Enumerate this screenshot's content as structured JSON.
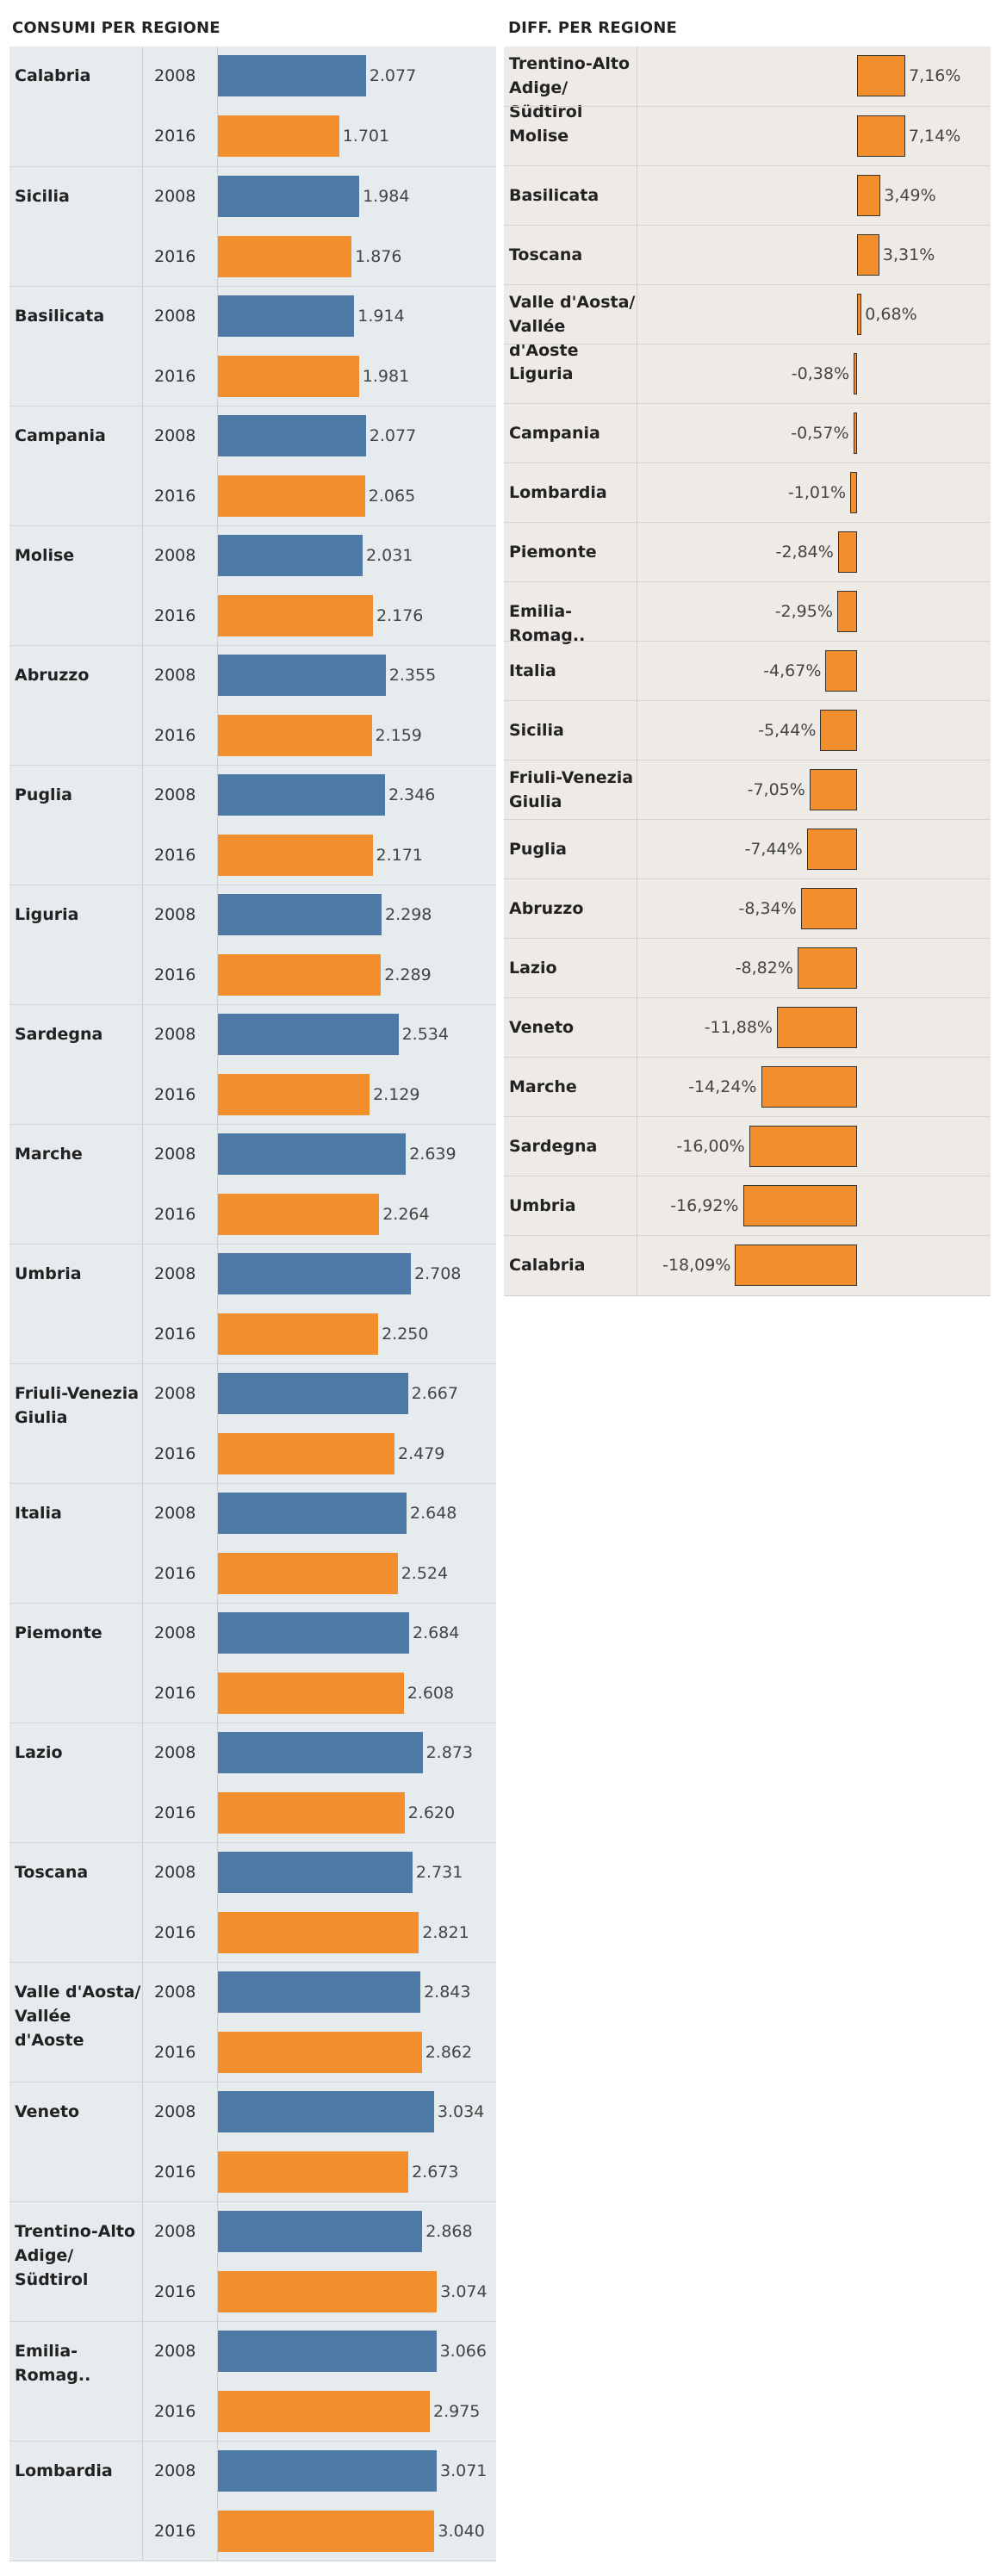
{
  "colors": {
    "y2008": "#4e79a7",
    "y2016": "#f28e2b",
    "diff": "#f28e2b"
  },
  "chart_data": [
    {
      "type": "bar",
      "title": "CONSUMI PER REGIONE",
      "series_labels": [
        "2008",
        "2016"
      ],
      "rows": [
        {
          "region": "Calabria",
          "v2008": 2077,
          "v2016": 1701,
          "l2008": "2.077",
          "l2016": "1.701"
        },
        {
          "region": "Sicilia",
          "v2008": 1984,
          "v2016": 1876,
          "l2008": "1.984",
          "l2016": "1.876"
        },
        {
          "region": "Basilicata",
          "v2008": 1914,
          "v2016": 1981,
          "l2008": "1.914",
          "l2016": "1.981"
        },
        {
          "region": "Campania",
          "v2008": 2077,
          "v2016": 2065,
          "l2008": "2.077",
          "l2016": "2.065"
        },
        {
          "region": "Molise",
          "v2008": 2031,
          "v2016": 2176,
          "l2008": "2.031",
          "l2016": "2.176"
        },
        {
          "region": "Abruzzo",
          "v2008": 2355,
          "v2016": 2159,
          "l2008": "2.355",
          "l2016": "2.159"
        },
        {
          "region": "Puglia",
          "v2008": 2346,
          "v2016": 2171,
          "l2008": "2.346",
          "l2016": "2.171"
        },
        {
          "region": "Liguria",
          "v2008": 2298,
          "v2016": 2289,
          "l2008": "2.298",
          "l2016": "2.289"
        },
        {
          "region": "Sardegna",
          "v2008": 2534,
          "v2016": 2129,
          "l2008": "2.534",
          "l2016": "2.129"
        },
        {
          "region": "Marche",
          "v2008": 2639,
          "v2016": 2264,
          "l2008": "2.639",
          "l2016": "2.264"
        },
        {
          "region": "Umbria",
          "v2008": 2708,
          "v2016": 2250,
          "l2008": "2.708",
          "l2016": "2.250"
        },
        {
          "region": "Friuli-Venezia Giulia",
          "v2008": 2667,
          "v2016": 2479,
          "l2008": "2.667",
          "l2016": "2.479"
        },
        {
          "region": "Italia",
          "v2008": 2648,
          "v2016": 2524,
          "l2008": "2.648",
          "l2016": "2.524"
        },
        {
          "region": "Piemonte",
          "v2008": 2684,
          "v2016": 2608,
          "l2008": "2.684",
          "l2016": "2.608"
        },
        {
          "region": "Lazio",
          "v2008": 2873,
          "v2016": 2620,
          "l2008": "2.873",
          "l2016": "2.620"
        },
        {
          "region": "Toscana",
          "v2008": 2731,
          "v2016": 2821,
          "l2008": "2.731",
          "l2016": "2.821"
        },
        {
          "region": "Valle d'Aosta/ Vallée d'Aoste",
          "v2008": 2843,
          "v2016": 2862,
          "l2008": "2.843",
          "l2016": "2.862"
        },
        {
          "region": "Veneto",
          "v2008": 3034,
          "v2016": 2673,
          "l2008": "3.034",
          "l2016": "2.673"
        },
        {
          "region": "Trentino-Alto Adige/ Südtirol",
          "v2008": 2868,
          "v2016": 3074,
          "l2008": "2.868",
          "l2016": "3.074"
        },
        {
          "region": "Emilia-Romag..",
          "v2008": 3066,
          "v2016": 2975,
          "l2008": "3.066",
          "l2016": "2.975"
        },
        {
          "region": "Lombardia",
          "v2008": 3071,
          "v2016": 3040,
          "l2008": "3.071",
          "l2016": "3.040"
        }
      ]
    },
    {
      "type": "bar",
      "title": "DIFF. PER REGIONE",
      "rows": [
        {
          "region": "Trentino-Alto Adige/ Südtirol",
          "value": 7.16,
          "label": "7,16%"
        },
        {
          "region": "Molise",
          "value": 7.14,
          "label": "7,14%"
        },
        {
          "region": "Basilicata",
          "value": 3.49,
          "label": "3,49%"
        },
        {
          "region": "Toscana",
          "value": 3.31,
          "label": "3,31%"
        },
        {
          "region": "Valle d'Aosta/ Vallée d'Aoste",
          "value": 0.68,
          "label": "0,68%"
        },
        {
          "region": "Liguria",
          "value": -0.38,
          "label": "-0,38%"
        },
        {
          "region": "Campania",
          "value": -0.57,
          "label": "-0,57%"
        },
        {
          "region": "Lombardia",
          "value": -1.01,
          "label": "-1,01%"
        },
        {
          "region": "Piemonte",
          "value": -2.84,
          "label": "-2,84%"
        },
        {
          "region": "Emilia-Romag..",
          "value": -2.95,
          "label": "-2,95%"
        },
        {
          "region": "Italia",
          "value": -4.67,
          "label": "-4,67%"
        },
        {
          "region": "Sicilia",
          "value": -5.44,
          "label": "-5,44%"
        },
        {
          "region": "Friuli-Venezia Giulia",
          "value": -7.05,
          "label": "-7,05%"
        },
        {
          "region": "Puglia",
          "value": -7.44,
          "label": "-7,44%"
        },
        {
          "region": "Abruzzo",
          "value": -8.34,
          "label": "-8,34%"
        },
        {
          "region": "Lazio",
          "value": -8.82,
          "label": "-8,82%"
        },
        {
          "region": "Veneto",
          "value": -11.88,
          "label": "-11,88%"
        },
        {
          "region": "Marche",
          "value": -14.24,
          "label": "-14,24%"
        },
        {
          "region": "Sardegna",
          "value": -16.0,
          "label": "-16,00%"
        },
        {
          "region": "Umbria",
          "value": -16.92,
          "label": "-16,92%"
        },
        {
          "region": "Calabria",
          "value": -18.09,
          "label": "-18,09%"
        }
      ]
    }
  ]
}
